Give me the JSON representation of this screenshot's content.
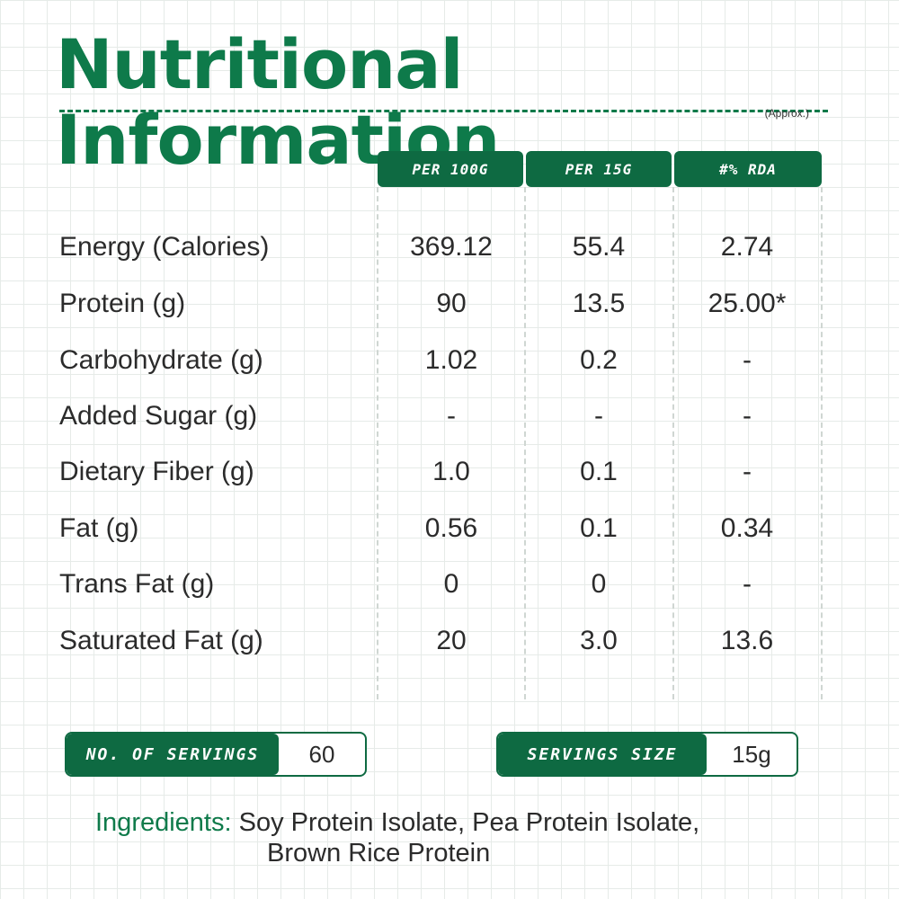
{
  "title": "Nutritional Information",
  "note": "(Approx.)",
  "columns": [
    "PER 100G",
    "PER 15G",
    "#% RDA"
  ],
  "rows": [
    {
      "label": "Energy (Calories)",
      "values": [
        "369.12",
        "55.4",
        "2.74"
      ]
    },
    {
      "label": "Protein (g)",
      "values": [
        "90",
        "13.5",
        "25.00*"
      ]
    },
    {
      "label": "Carbohydrate (g)",
      "values": [
        "1.02",
        "0.2",
        "-"
      ]
    },
    {
      "label": "Added Sugar (g)",
      "values": [
        "-",
        "-",
        "-"
      ]
    },
    {
      "label": "Dietary Fiber (g)",
      "values": [
        "1.0",
        "0.1",
        "-"
      ]
    },
    {
      "label": "Fat (g)",
      "values": [
        "0.56",
        "0.1",
        "0.34"
      ]
    },
    {
      "label": "Trans Fat (g)",
      "values": [
        "0",
        "0",
        "-"
      ]
    },
    {
      "label": "Saturated Fat (g)",
      "values": [
        "20",
        "3.0",
        "13.6"
      ]
    }
  ],
  "servings": {
    "label": "NO. OF SERVINGS",
    "value": "60"
  },
  "serving_size": {
    "label": "SERVINGS SIZE",
    "value": "15g"
  },
  "ingredients": {
    "label": "Ingredients:",
    "line1": "Soy Protein Isolate, Pea Protein Isolate,",
    "line2": "Brown Rice Protein"
  },
  "colors": {
    "brand_green": "#0e7a4a",
    "header_green": "#0e6a42"
  }
}
